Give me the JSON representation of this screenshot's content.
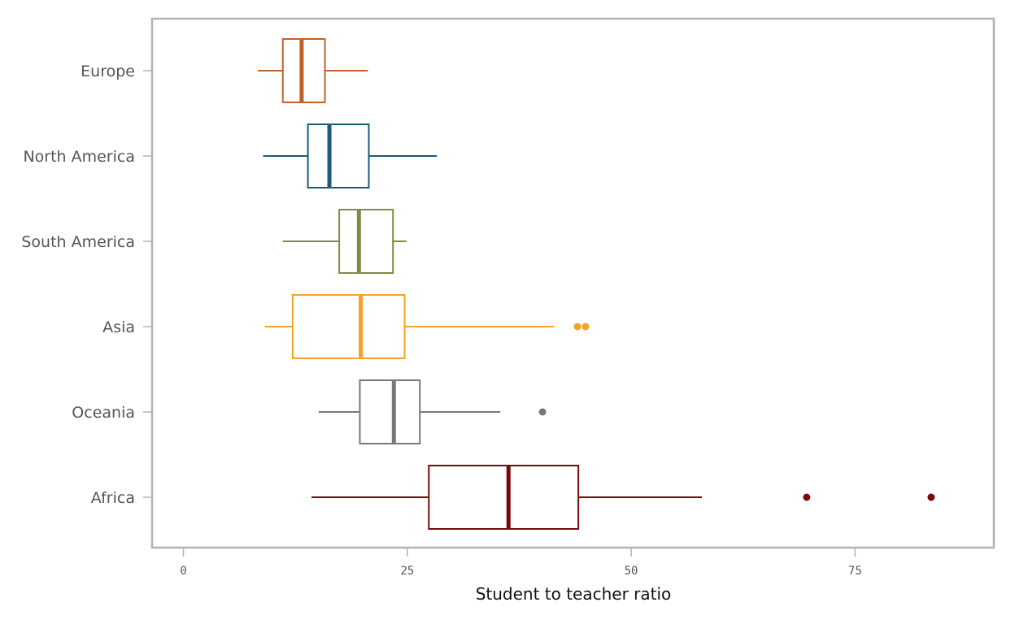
{
  "chart_data": {
    "type": "boxplot",
    "orientation": "horizontal",
    "xlabel": "Student to teacher ratio",
    "xlim": [
      -3.5,
      90.5
    ],
    "xticks": [
      0,
      25,
      50,
      75
    ],
    "grid": false,
    "categories": [
      "Europe",
      "North America",
      "South America",
      "Asia",
      "Oceania",
      "Africa"
    ],
    "series": [
      {
        "name": "Europe",
        "color": "#c0622a",
        "whisker_low": 8.3,
        "q1": 11.1,
        "median": 13.2,
        "q3": 15.8,
        "whisker_high": 20.6,
        "outliers": []
      },
      {
        "name": "North America",
        "color": "#1c5a7a",
        "whisker_low": 8.9,
        "q1": 13.9,
        "median": 16.3,
        "q3": 20.7,
        "whisker_high": 28.3,
        "outliers": []
      },
      {
        "name": "South America",
        "color": "#7f8c47",
        "whisker_low": 11.1,
        "q1": 17.4,
        "median": 19.6,
        "q3": 23.4,
        "whisker_high": 24.9,
        "outliers": []
      },
      {
        "name": "Asia",
        "color": "#f3a325",
        "whisker_low": 9.1,
        "q1": 12.2,
        "median": 19.8,
        "q3": 24.7,
        "whisker_high": 41.4,
        "outliers": [
          44.0,
          44.9
        ]
      },
      {
        "name": "Oceania",
        "color": "#787878",
        "whisker_low": 15.1,
        "q1": 19.7,
        "median": 23.5,
        "q3": 26.4,
        "whisker_high": 35.4,
        "outliers": [
          40.1
        ]
      },
      {
        "name": "Africa",
        "color": "#7a0a0a",
        "whisker_low": 14.3,
        "q1": 27.4,
        "median": 36.3,
        "q3": 44.1,
        "whisker_high": 57.9,
        "outliers": [
          69.6,
          83.5
        ]
      }
    ]
  }
}
